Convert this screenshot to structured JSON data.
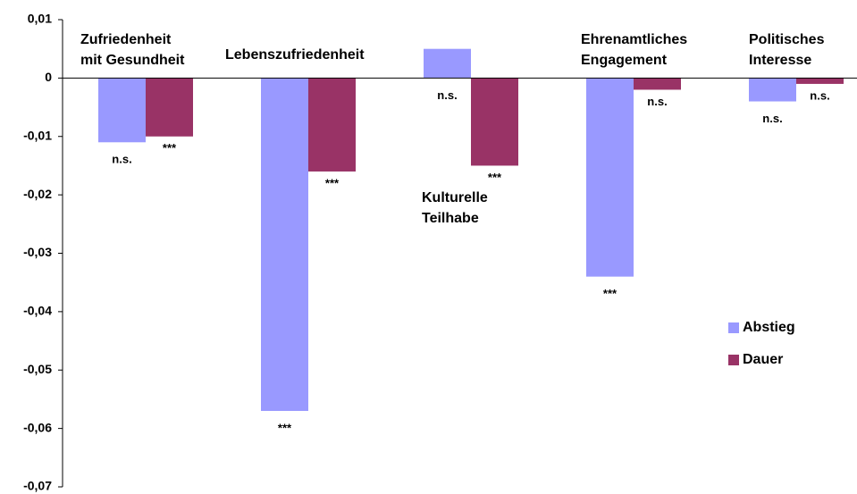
{
  "chart_data": {
    "type": "bar",
    "categories": [
      [
        "Zufriedenheit",
        "mit Gesundheit"
      ],
      [
        "Lebenszufriedenheit"
      ],
      [
        "Kulturelle",
        "Teilhabe"
      ],
      [
        "Ehrenamtliches",
        "Engagement"
      ],
      [
        "Politisches",
        "Interesse"
      ]
    ],
    "series": [
      {
        "name": "Abstieg",
        "color": "#9999ff",
        "values": [
          -0.011,
          -0.057,
          0.005,
          -0.034,
          -0.004
        ],
        "significance": [
          "n.s.",
          "***",
          "n.s.",
          "***",
          "n.s."
        ]
      },
      {
        "name": "Dauer",
        "color": "#993366",
        "values": [
          -0.01,
          -0.016,
          -0.015,
          -0.002,
          -0.001
        ],
        "significance": [
          "***",
          "***",
          "***",
          "n.s.",
          "n.s."
        ]
      }
    ],
    "ylim": [
      -0.07,
      0.01
    ],
    "yticks": [
      {
        "value": 0.01,
        "label": "0,01"
      },
      0,
      {
        "value": -0.01,
        "label": "-0,01"
      },
      {
        "value": -0.02,
        "label": "-0,02"
      },
      {
        "value": -0.03,
        "label": "-0,03"
      },
      {
        "value": -0.04,
        "label": "-0,04"
      },
      {
        "value": -0.05,
        "label": "-0,05"
      },
      {
        "value": -0.06,
        "label": "-0,06"
      },
      {
        "value": -0.07,
        "label": "-0,07"
      }
    ],
    "legend": "right"
  }
}
